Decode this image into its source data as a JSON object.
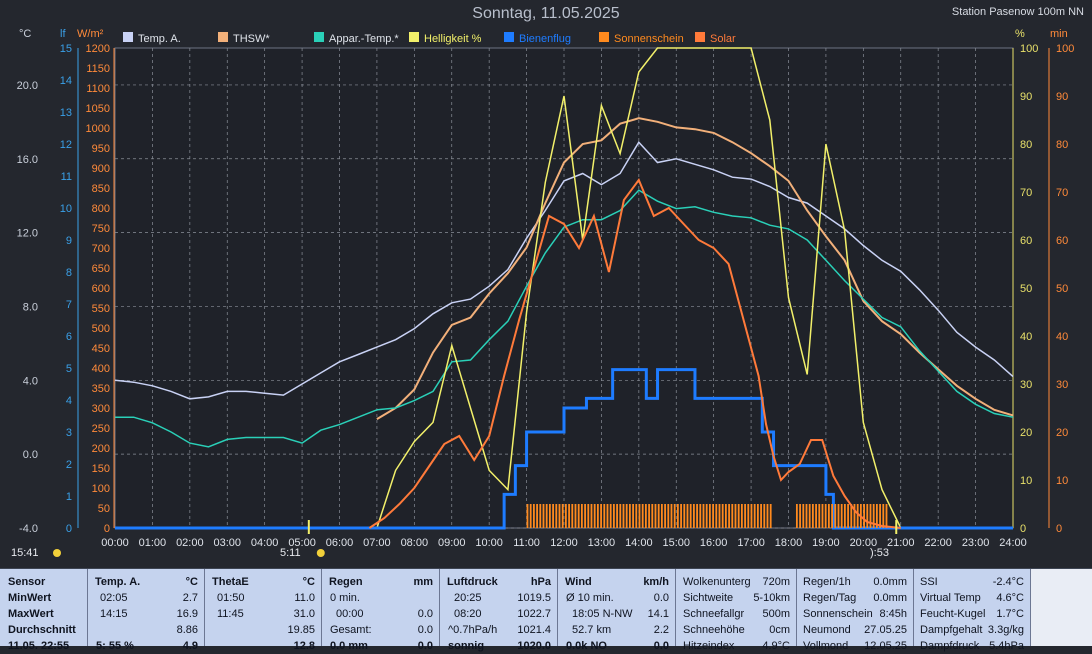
{
  "header": {
    "title": "Sonntag, 11.05.2025",
    "station": "Station Pasenow 100m NN"
  },
  "axis_units": {
    "left_temp": "°C",
    "left_lf": "lf",
    "left_solar": "W/m²",
    "right_pct": "%",
    "right_min": "min"
  },
  "legend": [
    {
      "label": "Temp. A.",
      "color": "#c9d2f5"
    },
    {
      "label": "THSW*",
      "color": "#f2b07a"
    },
    {
      "label": "Appar.-Temp.*",
      "color": "#2ad0b8"
    },
    {
      "label": "Helligkeit %",
      "color": "#f2f06a"
    },
    {
      "label": "Bienenflug",
      "color": "#1e7cff"
    },
    {
      "label": "Sonnenschein",
      "color": "#ff8a1e"
    },
    {
      "label": "Solar",
      "color": "#ff7a3a"
    }
  ],
  "bottom_labels": {
    "left_time": "15:41",
    "sunrise": "5:11",
    "sunset": "):53"
  },
  "chart_data": {
    "type": "line",
    "title": "Sonntag, 11.05.2025",
    "x_ticks": [
      "00:00",
      "01:00",
      "02:00",
      "03:00",
      "04:00",
      "05:00",
      "06:00",
      "07:00",
      "08:00",
      "09:00",
      "10:00",
      "11:00",
      "12:00",
      "13:00",
      "14:00",
      "15:00",
      "16:00",
      "17:00",
      "18:00",
      "19:00",
      "20:00",
      "21:00",
      "22:00",
      "23:00",
      "24:00"
    ],
    "xlim": [
      0,
      24
    ],
    "temp_axis": {
      "unit": "°C",
      "ylim": [
        -4,
        22
      ],
      "ticks": [
        "-4.0",
        "0.0",
        "4.0",
        "8.0",
        "12.0",
        "16.0",
        "20.0"
      ],
      "tick_values": [
        -4,
        0,
        4,
        8,
        12,
        16,
        20
      ]
    },
    "lf_axis": {
      "unit": "lf",
      "ylim": [
        0,
        15
      ],
      "ticks": [
        "0",
        "1",
        "2",
        "3",
        "4",
        "5",
        "6",
        "7",
        "8",
        "9",
        "10",
        "11",
        "12",
        "13",
        "14",
        "15"
      ]
    },
    "solar_axis": {
      "unit": "W/m²",
      "ylim": [
        0,
        1200
      ],
      "ticks": [
        "0",
        "50",
        "100",
        "150",
        "200",
        "250",
        "300",
        "350",
        "400",
        "450",
        "500",
        "550",
        "600",
        "650",
        "700",
        "750",
        "800",
        "850",
        "900",
        "950",
        "1000",
        "1050",
        "1100",
        "1150",
        "1200"
      ]
    },
    "pct_axis": {
      "unit": "%",
      "ylim": [
        0,
        100
      ],
      "ticks": [
        "0",
        "10",
        "20",
        "30",
        "40",
        "50",
        "60",
        "70",
        "80",
        "90",
        "100"
      ]
    },
    "min_axis": {
      "unit": "min",
      "ylim": [
        0,
        100
      ],
      "ticks": [
        "0",
        "10",
        "20",
        "30",
        "40",
        "50",
        "60",
        "70",
        "80",
        "90",
        "100"
      ]
    },
    "series": [
      {
        "name": "Temp. A.",
        "axis": "temp",
        "x": [
          0,
          0.5,
          1,
          1.5,
          2,
          2.5,
          3,
          3.5,
          4,
          4.5,
          5,
          5.5,
          6,
          6.5,
          7,
          7.5,
          8,
          8.5,
          9,
          9.5,
          10,
          10.5,
          11,
          11.5,
          12,
          12.5,
          13,
          13.5,
          14,
          14.5,
          15,
          15.5,
          16,
          16.5,
          17,
          17.5,
          18,
          18.5,
          19,
          19.5,
          20,
          20.5,
          21,
          21.5,
          22,
          22.5,
          23,
          23.5,
          24
        ],
        "y": [
          4.0,
          3.9,
          3.7,
          3.4,
          3.0,
          3.1,
          3.4,
          3.4,
          3.3,
          3.2,
          3.8,
          4.4,
          5.0,
          5.4,
          5.8,
          6.2,
          6.8,
          7.6,
          8.2,
          8.4,
          9.1,
          10.0,
          11.7,
          13.2,
          14.8,
          15.2,
          14.6,
          15.2,
          16.9,
          15.8,
          16.0,
          15.7,
          15.4,
          15.0,
          14.9,
          14.5,
          13.9,
          13.6,
          12.9,
          12.2,
          11.3,
          10.5,
          9.9,
          8.9,
          7.8,
          6.6,
          5.8,
          5.1,
          4.2
        ]
      },
      {
        "name": "THSW*",
        "axis": "temp",
        "x": [
          7,
          7.5,
          8,
          8.5,
          9,
          9.5,
          10,
          10.5,
          11,
          11.5,
          12,
          12.5,
          13,
          13.5,
          14,
          14.5,
          15,
          15.5,
          16,
          16.5,
          17,
          17.5,
          18,
          18.5,
          19,
          19.5,
          20,
          20.5,
          21,
          21.5,
          22,
          22.5,
          23,
          23.5,
          24
        ],
        "y": [
          1.9,
          2.5,
          3.5,
          5.5,
          7.0,
          7.4,
          8.7,
          9.8,
          11.2,
          13.6,
          15.8,
          16.8,
          17.0,
          17.9,
          18.2,
          18.0,
          17.7,
          17.6,
          17.4,
          16.9,
          16.3,
          15.6,
          14.8,
          13.2,
          11.8,
          10.5,
          8.3,
          7.2,
          6.5,
          5.5,
          4.6,
          3.7,
          3.0,
          2.4,
          2.1
        ]
      },
      {
        "name": "Appar.-Temp.*",
        "axis": "temp",
        "x": [
          0,
          0.5,
          1,
          1.5,
          2,
          2.5,
          3,
          3.5,
          4,
          4.5,
          5,
          5.5,
          6,
          6.5,
          7,
          7.5,
          8,
          8.5,
          9,
          9.5,
          10,
          10.5,
          11,
          11.5,
          12,
          12.5,
          13,
          13.5,
          14,
          14.5,
          15,
          15.5,
          16,
          16.5,
          17,
          17.5,
          18,
          18.5,
          19,
          19.5,
          20,
          20.5,
          21,
          21.5,
          22,
          22.5,
          23,
          23.5,
          24
        ],
        "y": [
          2.0,
          2.0,
          1.7,
          1.2,
          0.6,
          0.4,
          0.8,
          0.9,
          0.9,
          0.9,
          0.6,
          1.3,
          1.6,
          2.0,
          2.4,
          2.5,
          2.9,
          3.4,
          5.0,
          5.1,
          6.2,
          7.2,
          9.1,
          10.9,
          12.3,
          12.7,
          12.7,
          13.2,
          14.3,
          13.7,
          13.3,
          13.4,
          13.1,
          12.9,
          12.8,
          12.4,
          12.2,
          11.6,
          10.5,
          9.4,
          8.4,
          7.4,
          6.9,
          5.6,
          4.5,
          3.4,
          2.7,
          2.2,
          2.0
        ]
      },
      {
        "name": "Helligkeit %",
        "axis": "pct",
        "x": [
          7,
          7.5,
          8,
          8.5,
          9,
          9.5,
          10,
          10.5,
          11,
          11.5,
          12,
          12.5,
          13,
          13.5,
          14,
          14.5,
          15,
          15.5,
          16,
          16.5,
          17,
          17.5,
          18,
          18.5,
          19,
          19.5,
          20,
          20.5,
          21
        ],
        "y": [
          0,
          12,
          18,
          22,
          38,
          25,
          12,
          8,
          45,
          72,
          90,
          60,
          88,
          78,
          95,
          100,
          100,
          100,
          100,
          100,
          100,
          85,
          48,
          32,
          80,
          62,
          22,
          8,
          0
        ]
      },
      {
        "name": "Bienenflug",
        "axis": "min",
        "x": [
          0,
          10.2,
          10.4,
          10.7,
          11.0,
          11.3,
          12.0,
          12.6,
          13.0,
          13.3,
          13.9,
          14.2,
          14.5,
          14.8,
          15.5,
          16.5,
          17.0,
          17.3,
          17.6,
          18.0,
          18.5,
          19.0,
          19.2,
          19.5,
          24
        ],
        "y": [
          0,
          0,
          7,
          13,
          20,
          20,
          25,
          27,
          27,
          33,
          33,
          27,
          33,
          33,
          27,
          27,
          27,
          20,
          13,
          13,
          13,
          7,
          0,
          0,
          0
        ]
      },
      {
        "name": "Sonnenschein",
        "axis": "min",
        "x": [
          11.0,
          12.0,
          13.0,
          14.0,
          15.0,
          16.0,
          17.0,
          17.5,
          18.2,
          19.0,
          19.4,
          20.0,
          20.6
        ],
        "y": [
          5,
          5,
          5,
          5,
          5,
          5,
          5,
          5,
          5,
          5,
          5,
          5,
          5
        ]
      },
      {
        "name": "Solar",
        "axis": "solar",
        "x": [
          6.8,
          7.2,
          7.6,
          8.0,
          8.4,
          8.8,
          9.2,
          9.6,
          10.0,
          10.4,
          10.8,
          11.2,
          11.6,
          12.0,
          12.4,
          12.8,
          13.2,
          13.6,
          14.0,
          14.4,
          14.8,
          15.2,
          15.6,
          16.0,
          16.4,
          16.8,
          17.2,
          17.4,
          17.6,
          17.8,
          18.0,
          18.3,
          18.6,
          18.9,
          19.2,
          19.5,
          19.8,
          20.1,
          20.5,
          21
        ],
        "y": [
          0,
          25,
          60,
          100,
          155,
          210,
          230,
          170,
          230,
          380,
          520,
          650,
          780,
          760,
          700,
          780,
          640,
          820,
          870,
          780,
          800,
          760,
          720,
          700,
          660,
          520,
          380,
          260,
          180,
          120,
          140,
          160,
          220,
          220,
          130,
          80,
          40,
          15,
          5,
          0
        ]
      }
    ],
    "legend_position": "top",
    "grid": true
  },
  "stats": {
    "sensor": {
      "header": "Sensor",
      "rows": [
        "MinWert",
        "MaxWert",
        "Durchschnitt",
        "11.05. 22:55"
      ]
    },
    "temp": {
      "header": "Temp. A.",
      "unit": "°C",
      "rows": [
        [
          "02:05",
          "2.7"
        ],
        [
          "14:15",
          "16.9"
        ],
        [
          "",
          "8.86"
        ],
        [
          "5: 55 %",
          "4.9"
        ]
      ]
    },
    "thetae": {
      "header": "ThetaE",
      "unit": "°C",
      "rows": [
        [
          "01:50",
          "11.0"
        ],
        [
          "11:45",
          "31.0"
        ],
        [
          "",
          "19.85"
        ],
        [
          "",
          "12.8"
        ]
      ]
    },
    "regen": {
      "header": "Regen",
      "unit": "mm",
      "rows": [
        [
          "0 min.",
          ""
        ],
        [
          "00:00",
          "0.0"
        ],
        [
          "Gesamt:",
          "0.0"
        ],
        [
          "0.0 mm",
          "0.0"
        ]
      ]
    },
    "luftdruck": {
      "header": "Luftdruck",
      "unit": "hPa",
      "rows": [
        [
          "20:25",
          "1019.5"
        ],
        [
          "08:20",
          "1022.7"
        ],
        [
          "^0.7hPa/h",
          "1021.4"
        ],
        [
          "sonnig",
          "1020.0"
        ]
      ]
    },
    "wind": {
      "header": "Wind",
      "unit": "km/h",
      "rows": [
        [
          "Ø 10 min.",
          "0.0"
        ],
        [
          "18:05   N-NW",
          "14.1"
        ],
        [
          "52.7 km",
          "2.2"
        ],
        [
          "0.0k NO",
          "0.0"
        ]
      ]
    },
    "col6": [
      [
        "Wolkenunterg",
        "720m"
      ],
      [
        "Sichtweite",
        "5-10km"
      ],
      [
        "Schneefallgr",
        "500m"
      ],
      [
        "Schneehöhe",
        "0cm"
      ],
      [
        "Hitzeindex",
        "4.9°C"
      ]
    ],
    "col7": [
      [
        "Regen/1h",
        "0.0mm"
      ],
      [
        "Regen/Tag",
        "0.0mm"
      ],
      [
        "Sonnenschein",
        "8:45h"
      ],
      [
        "Neumond",
        "27.05.25"
      ],
      [
        "Vollmond",
        "12.05.25"
      ]
    ],
    "col8": [
      [
        "SSI",
        "-2.4°C"
      ],
      [
        "Virtual Temp",
        "4.6°C"
      ],
      [
        "Feucht-Kugel",
        "1.7°C"
      ],
      [
        "Dampfgehalt",
        "3.3g/kg"
      ],
      [
        "Dampfdruck",
        "5.4hPa"
      ]
    ]
  }
}
